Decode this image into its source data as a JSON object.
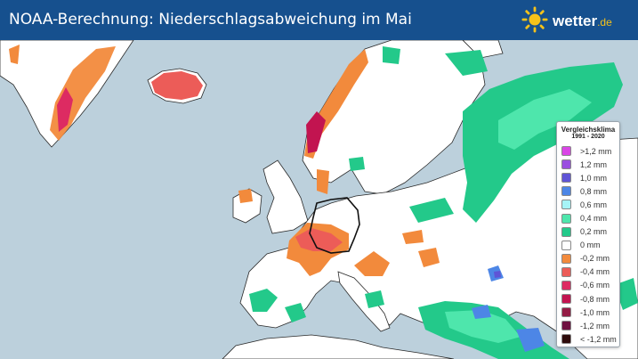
{
  "header": {
    "title": "NOAA-Berechnung: Niederschlagsabweichung im Mai",
    "logo_text": "wetter",
    "logo_tld": ".de",
    "logo_icon": "sun-icon"
  },
  "colors": {
    "header_bg": "#16508e",
    "sea": "#bcd0dc",
    "land": "#ffffff",
    "border": "#222222"
  },
  "legend": {
    "title": "Vergleichsklima",
    "period": "1991 - 2020",
    "items": [
      {
        "label": ">1,2 mm",
        "color": "#d946e6"
      },
      {
        "label": "1,2 mm",
        "color": "#9a4fe0"
      },
      {
        "label": "1,0 mm",
        "color": "#5f54d6"
      },
      {
        "label": "0,8 mm",
        "color": "#4d86e6"
      },
      {
        "label": "0,6 mm",
        "color": "#a6f4f7"
      },
      {
        "label": "0,4 mm",
        "color": "#4ee6ac"
      },
      {
        "label": "0,2 mm",
        "color": "#23c98a"
      },
      {
        "label": "0 mm",
        "color": "#ffffff"
      },
      {
        "label": "-0,2 mm",
        "color": "#f28a3c"
      },
      {
        "label": "-0,4 mm",
        "color": "#ec5c58"
      },
      {
        "label": "-0,6 mm",
        "color": "#dd2b62"
      },
      {
        "label": "-0,8 mm",
        "color": "#c21450"
      },
      {
        "label": "-1,0 mm",
        "color": "#941c45"
      },
      {
        "label": "-1,2 mm",
        "color": "#6e1140"
      },
      {
        "label": "< -1,2 mm",
        "color": "#2d0b0b"
      }
    ]
  }
}
